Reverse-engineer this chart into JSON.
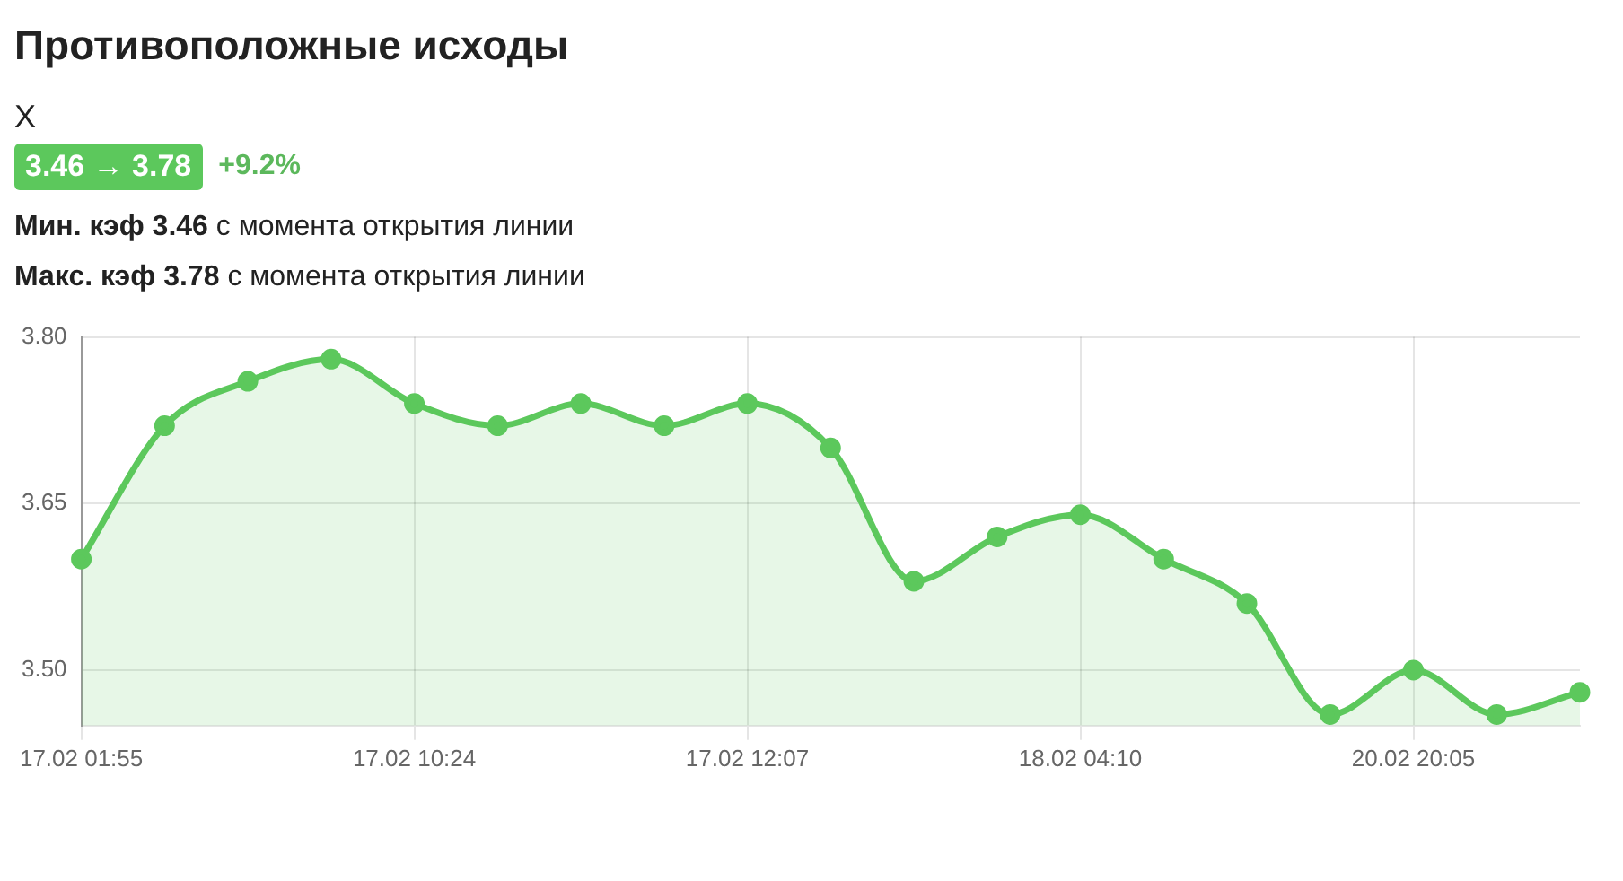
{
  "chart_data": {
    "type": "area",
    "title": "Противоположные исходы",
    "subtitle": "X",
    "annotations": [
      "3.46 → 3.78",
      "+9.2%",
      "Мин. кэф 3.46 с момента открытия линии",
      "Макс. кэф 3.78 с момента открытия линии"
    ],
    "categories": [
      "17.02 01:55",
      null,
      null,
      null,
      "17.02 10:24",
      null,
      null,
      null,
      "17.02 12:07",
      null,
      null,
      null,
      "18.02 04:10",
      null,
      null,
      null,
      "20.02 20:05",
      null,
      null
    ],
    "series": [
      {
        "color": "#5cc85c",
        "values": [
          3.6,
          3.72,
          3.76,
          3.78,
          3.74,
          3.72,
          3.74,
          3.72,
          3.74,
          3.7,
          3.58,
          3.62,
          3.64,
          3.6,
          3.56,
          3.46,
          3.5,
          3.46,
          3.48
        ]
      }
    ],
    "ylim": [
      3.45,
      3.8
    ],
    "yticks": [
      {
        "value": 3.5,
        "label": "3.50"
      },
      3.65,
      {
        "value": 3.8,
        "label": "3.80"
      }
    ],
    "grid": true,
    "marker": "circle",
    "legend": false
  }
}
